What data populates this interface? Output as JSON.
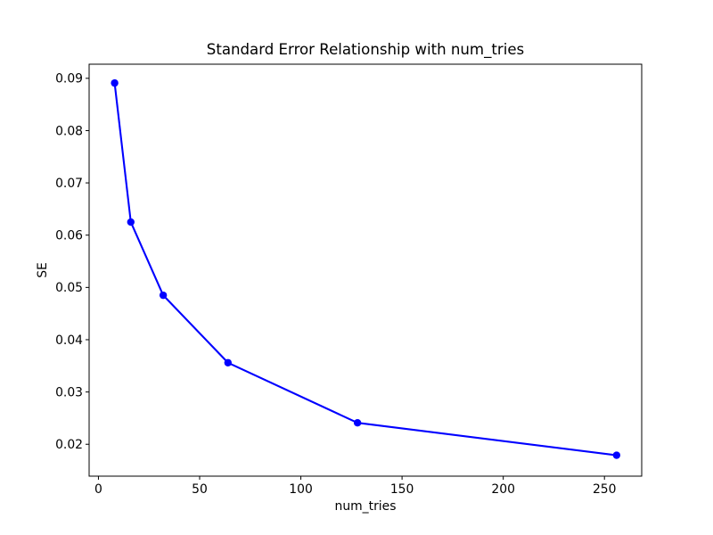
{
  "chart_data": {
    "type": "line",
    "title": "Standard Error Relationship with num_tries",
    "xlabel": "num_tries",
    "ylabel": "SE",
    "x": [
      8,
      16,
      32,
      64,
      128,
      256
    ],
    "y": [
      0.0891,
      0.0625,
      0.0485,
      0.0356,
      0.0241,
      0.0179
    ],
    "series_name": "SE",
    "line_color": "#0000ff",
    "marker": "circle",
    "xlim": [
      -4.6,
      268.4
    ],
    "ylim": [
      0.0139,
      0.0927
    ],
    "xticks": {
      "values": [
        0,
        50,
        100,
        150,
        200,
        250
      ],
      "labels": [
        "0",
        "50",
        "100",
        "150",
        "200",
        "250"
      ]
    },
    "yticks": {
      "values": [
        0.02,
        0.03,
        0.04,
        0.05,
        0.06,
        0.07,
        0.08,
        0.09
      ],
      "labels": [
        "0.02",
        "0.03",
        "0.04",
        "0.05",
        "0.06",
        "0.07",
        "0.08",
        "0.09"
      ]
    },
    "grid": false,
    "legend": null,
    "background_color": "#ffffff",
    "axes_color": "#000000"
  }
}
